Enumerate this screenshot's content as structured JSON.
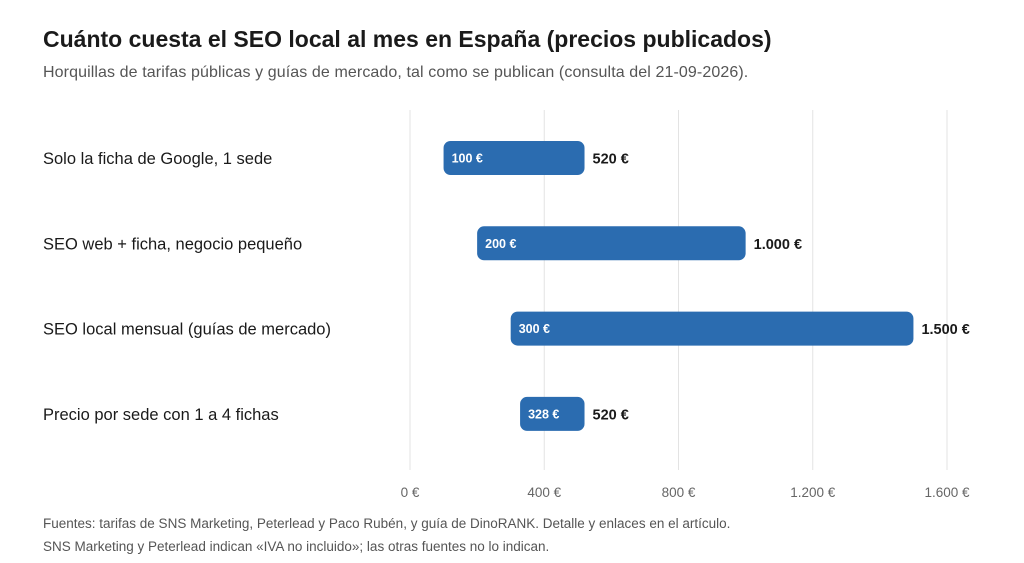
{
  "title": "Cuánto cuesta el SEO local al mes en España (precios publicados)",
  "subtitle": "Horquillas de tarifas públicas y guías de mercado, tal como se publican (consulta del 21-09-2026).",
  "footnotes": [
    "Fuentes: tarifas de SNS Marketing, Peterlead y Paco Rubén, y guía de DinoRANK. Detalle y enlaces en el artículo.",
    "SNS Marketing y Peterlead indican «IVA no incluido»; las otras fuentes no lo indican."
  ],
  "chart_data": {
    "type": "bar",
    "orientation": "horizontal",
    "subtype": "range",
    "categories": [
      "Solo la ficha de Google, 1 sede",
      "SEO web + ficha, negocio pequeño",
      "SEO local mensual (guías de mercado)",
      "Precio por sede con 1 a 4 fichas"
    ],
    "series": [
      {
        "min": [
          100,
          200,
          300,
          328
        ],
        "max": [
          520,
          1000,
          1500,
          520
        ],
        "min_labels": [
          "100 €",
          "200 €",
          "300 €",
          "328 €"
        ],
        "max_labels": [
          "520 €",
          "1.000 €",
          "1.500 €",
          "520 €"
        ]
      }
    ],
    "xlim": [
      0,
      1600
    ],
    "xticks": [
      0,
      400,
      800,
      1200,
      1600
    ],
    "xtick_labels": [
      "0 €",
      "400 €",
      "800 €",
      "1.200 €",
      "1.600 €"
    ],
    "xlabel": "",
    "ylabel": "",
    "grid": true,
    "legend": "none",
    "colors": {
      "bar": "#2b6cb0",
      "grid": "#e3e3e3",
      "tick_text": "#666666",
      "inner_label": "#ffffff",
      "outer_label": "#1a1a1a"
    }
  }
}
